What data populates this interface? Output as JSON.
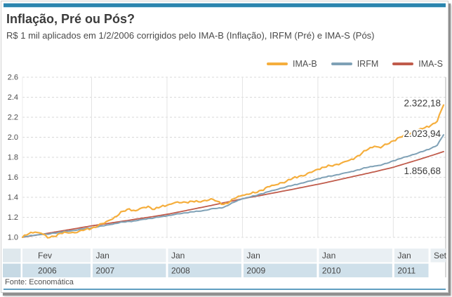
{
  "header": {
    "title": "Inflação, Pré ou Pós?",
    "subtitle": "R$ 1 mil aplicados em 1/2/2006 corrigidos pelo IMA-B (Inflação), IRFM (Pré) e IMA-S (Pós)"
  },
  "footer": {
    "source": "Fonte: Economática"
  },
  "accent_colors": {
    "top_bar": "#2b85ae",
    "footer_line": "#5f9fc1"
  },
  "chart_data": {
    "type": "line",
    "title": "Inflação, Pré ou Pós?",
    "xlabel": "",
    "ylabel": "",
    "ylim": [
      1.0,
      2.6
    ],
    "ytick_step": 0.2,
    "grid": "horizontal-dashed, vertical-solid-at-year-start",
    "legend_position": "top-right",
    "x_unit": "month",
    "x_start": "Fev/2006",
    "x_end": "Set/2011",
    "x_axis_segments": [
      {
        "month": "Fev",
        "year": "2006",
        "index": 0
      },
      {
        "month": "Jan",
        "year": "2007",
        "index": 11
      },
      {
        "month": "Jan",
        "year": "2008",
        "index": 23
      },
      {
        "month": "Jan",
        "year": "2009",
        "index": 35
      },
      {
        "month": "Jan",
        "year": "2010",
        "index": 47
      },
      {
        "month": "Jan",
        "year": "2011",
        "index": 59
      },
      {
        "month": "Set",
        "year": "",
        "index": 67
      }
    ],
    "series": [
      {
        "name": "IMA-B",
        "color": "#F5AE3D",
        "end_label": "2.322,18",
        "values": [
          1.0,
          1.035,
          1.052,
          1.04,
          0.995,
          1.01,
          1.04,
          1.048,
          1.05,
          1.06,
          1.078,
          1.09,
          1.115,
          1.14,
          1.175,
          1.21,
          1.26,
          1.285,
          1.265,
          1.295,
          1.31,
          1.28,
          1.305,
          1.32,
          1.34,
          1.345,
          1.35,
          1.36,
          1.355,
          1.37,
          1.385,
          1.36,
          1.33,
          1.355,
          1.395,
          1.42,
          1.43,
          1.445,
          1.47,
          1.505,
          1.52,
          1.545,
          1.56,
          1.59,
          1.61,
          1.62,
          1.65,
          1.68,
          1.7,
          1.715,
          1.73,
          1.75,
          1.77,
          1.8,
          1.84,
          1.88,
          1.91,
          1.895,
          1.93,
          1.965,
          2.0,
          2.02,
          2.05,
          2.075,
          2.095,
          2.12,
          2.16,
          2.322
        ]
      },
      {
        "name": "IRFM",
        "color": "#7FA1B6",
        "end_label": "2.023,94",
        "values": [
          1.0,
          1.012,
          1.022,
          1.028,
          1.03,
          1.042,
          1.052,
          1.06,
          1.068,
          1.078,
          1.088,
          1.096,
          1.105,
          1.115,
          1.128,
          1.14,
          1.152,
          1.16,
          1.165,
          1.178,
          1.188,
          1.195,
          1.205,
          1.215,
          1.225,
          1.235,
          1.245,
          1.255,
          1.26,
          1.27,
          1.285,
          1.29,
          1.3,
          1.33,
          1.36,
          1.385,
          1.4,
          1.415,
          1.435,
          1.455,
          1.47,
          1.49,
          1.505,
          1.52,
          1.535,
          1.55,
          1.565,
          1.585,
          1.6,
          1.612,
          1.625,
          1.64,
          1.652,
          1.668,
          1.685,
          1.7,
          1.712,
          1.72,
          1.74,
          1.765,
          1.785,
          1.805,
          1.825,
          1.845,
          1.865,
          1.89,
          1.92,
          2.024
        ]
      },
      {
        "name": "IMA-S",
        "color": "#C05B4B",
        "end_label": "1.856,68",
        "values": [
          1.0,
          1.01,
          1.02,
          1.03,
          1.04,
          1.051,
          1.061,
          1.072,
          1.082,
          1.093,
          1.104,
          1.115,
          1.124,
          1.133,
          1.143,
          1.152,
          1.162,
          1.171,
          1.181,
          1.191,
          1.2,
          1.21,
          1.22,
          1.23,
          1.242,
          1.255,
          1.267,
          1.28,
          1.293,
          1.305,
          1.318,
          1.332,
          1.345,
          1.358,
          1.372,
          1.385,
          1.397,
          1.408,
          1.42,
          1.432,
          1.444,
          1.456,
          1.468,
          1.48,
          1.493,
          1.505,
          1.518,
          1.53,
          1.543,
          1.557,
          1.571,
          1.585,
          1.599,
          1.613,
          1.627,
          1.641,
          1.655,
          1.67,
          1.685,
          1.7,
          1.719,
          1.738,
          1.757,
          1.776,
          1.796,
          1.816,
          1.836,
          1.857
        ]
      }
    ]
  }
}
